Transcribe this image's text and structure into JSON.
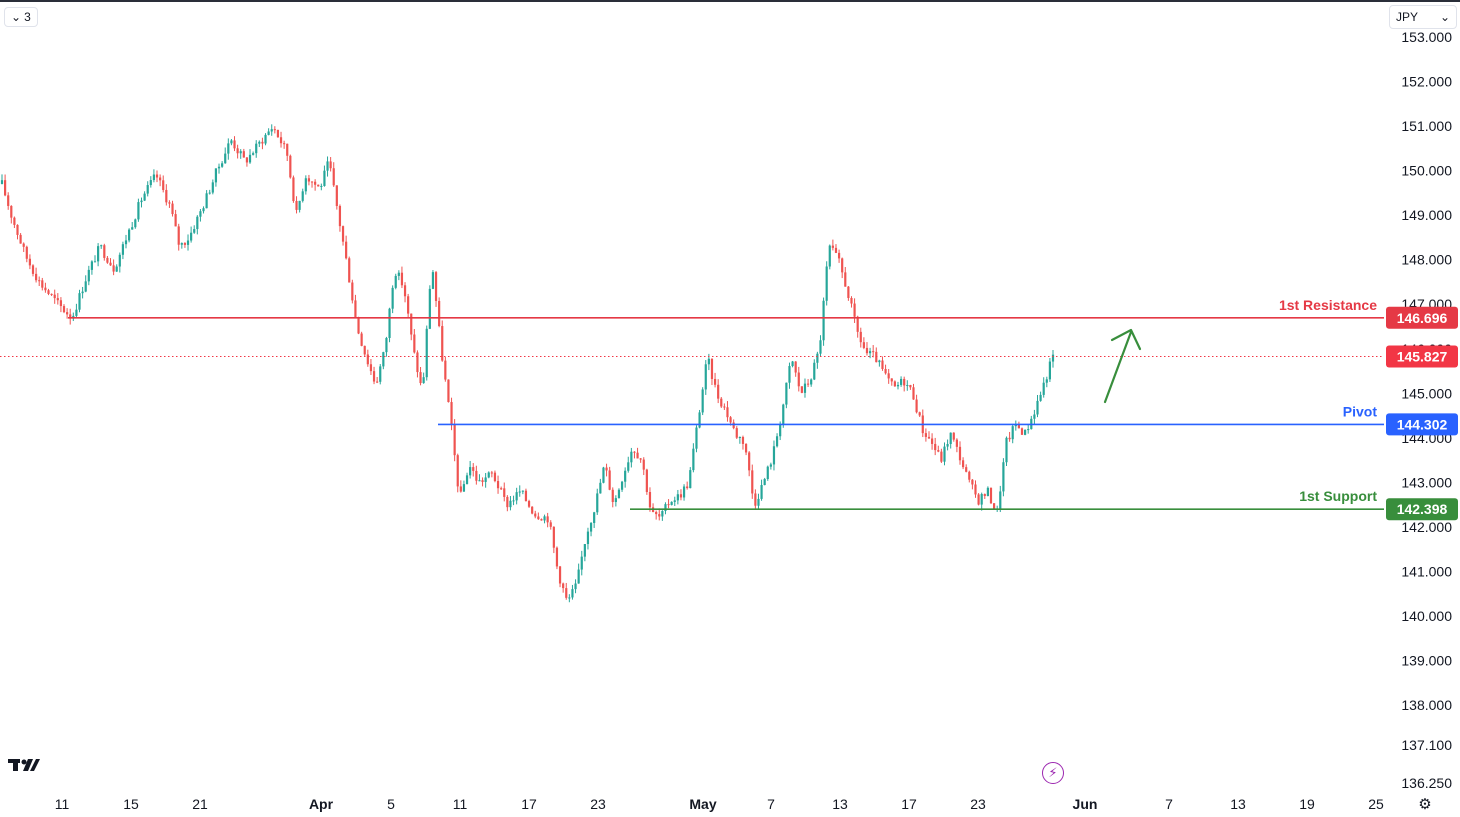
{
  "header": {
    "interval_label": "3",
    "currency_label": "JPY"
  },
  "colors": {
    "up": "#26a69a",
    "down": "#ef5350",
    "resistance": "#e53945",
    "pivot": "#2962ff",
    "support": "#388e3c",
    "current": "#f23645",
    "arrow": "#388e3c"
  },
  "chart_data": {
    "type": "candlestick",
    "title": "",
    "currency": "JPY",
    "ylim": [
      136.25,
      153.0
    ],
    "y_ticks": [
      "153.000",
      "152.000",
      "151.000",
      "150.000",
      "149.000",
      "148.000",
      "147.000",
      "146.000",
      "145.000",
      "144.000",
      "143.000",
      "142.000",
      "141.000",
      "140.000",
      "139.000",
      "138.000",
      "137.100",
      "136.250"
    ],
    "x_ticks": [
      {
        "label": "11",
        "bold": false
      },
      {
        "label": "15",
        "bold": false
      },
      {
        "label": "21",
        "bold": false
      },
      {
        "label": "Apr",
        "bold": true
      },
      {
        "label": "5",
        "bold": false
      },
      {
        "label": "11",
        "bold": false
      },
      {
        "label": "17",
        "bold": false
      },
      {
        "label": "23",
        "bold": false
      },
      {
        "label": "May",
        "bold": true
      },
      {
        "label": "7",
        "bold": false
      },
      {
        "label": "13",
        "bold": false
      },
      {
        "label": "17",
        "bold": false
      },
      {
        "label": "23",
        "bold": false
      },
      {
        "label": "Jun",
        "bold": true
      },
      {
        "label": "7",
        "bold": false
      },
      {
        "label": "13",
        "bold": false
      },
      {
        "label": "19",
        "bold": false
      },
      {
        "label": "25",
        "bold": false
      }
    ],
    "levels": [
      {
        "name": "1st Resistance",
        "value": 146.696,
        "label": "146.696"
      },
      {
        "name": "Pivot",
        "value": 144.302,
        "label": "144.302"
      },
      {
        "name": "1st Support",
        "value": 142.398,
        "label": "142.398"
      }
    ],
    "current_price": {
      "value": 145.827,
      "label": "145.827"
    },
    "price_path": [
      {
        "t": 0,
        "p": 149.7
      },
      {
        "t": 2,
        "p": 149.0
      },
      {
        "t": 5,
        "p": 148.1
      },
      {
        "t": 8,
        "p": 147.5
      },
      {
        "t": 12,
        "p": 147.0
      },
      {
        "t": 15,
        "p": 146.7
      },
      {
        "t": 18,
        "p": 147.6
      },
      {
        "t": 21,
        "p": 148.3
      },
      {
        "t": 24,
        "p": 147.8
      },
      {
        "t": 27,
        "p": 148.6
      },
      {
        "t": 30,
        "p": 149.4
      },
      {
        "t": 33,
        "p": 149.9
      },
      {
        "t": 36,
        "p": 149.2
      },
      {
        "t": 38,
        "p": 148.3
      },
      {
        "t": 40,
        "p": 148.5
      },
      {
        "t": 43,
        "p": 149.2
      },
      {
        "t": 46,
        "p": 150.0
      },
      {
        "t": 49,
        "p": 150.7
      },
      {
        "t": 52,
        "p": 150.2
      },
      {
        "t": 55,
        "p": 150.6
      },
      {
        "t": 58,
        "p": 151.0
      },
      {
        "t": 61,
        "p": 150.4
      },
      {
        "t": 63,
        "p": 149.0
      },
      {
        "t": 65,
        "p": 149.9
      },
      {
        "t": 68,
        "p": 149.6
      },
      {
        "t": 70,
        "p": 150.2
      },
      {
        "t": 72,
        "p": 149.0
      },
      {
        "t": 74,
        "p": 147.8
      },
      {
        "t": 76,
        "p": 146.5
      },
      {
        "t": 78,
        "p": 145.8
      },
      {
        "t": 80,
        "p": 145.2
      },
      {
        "t": 82,
        "p": 146.0
      },
      {
        "t": 84,
        "p": 147.8
      },
      {
        "t": 86,
        "p": 147.4
      },
      {
        "t": 88,
        "p": 146.0
      },
      {
        "t": 90,
        "p": 145.0
      },
      {
        "t": 92,
        "p": 148.0
      },
      {
        "t": 94,
        "p": 146.0
      },
      {
        "t": 96,
        "p": 144.4
      },
      {
        "t": 98,
        "p": 142.6
      },
      {
        "t": 100,
        "p": 143.4
      },
      {
        "t": 102,
        "p": 143.0
      },
      {
        "t": 105,
        "p": 143.2
      },
      {
        "t": 108,
        "p": 142.5
      },
      {
        "t": 111,
        "p": 142.8
      },
      {
        "t": 114,
        "p": 142.3
      },
      {
        "t": 117,
        "p": 142.2
      },
      {
        "t": 119,
        "p": 141.0
      },
      {
        "t": 121,
        "p": 140.3
      },
      {
        "t": 123,
        "p": 140.7
      },
      {
        "t": 125,
        "p": 141.8
      },
      {
        "t": 127,
        "p": 142.5
      },
      {
        "t": 129,
        "p": 143.4
      },
      {
        "t": 131,
        "p": 142.5
      },
      {
        "t": 133,
        "p": 143.2
      },
      {
        "t": 135,
        "p": 143.8
      },
      {
        "t": 137,
        "p": 143.5
      },
      {
        "t": 139,
        "p": 142.3
      },
      {
        "t": 141,
        "p": 142.2
      },
      {
        "t": 143,
        "p": 142.6
      },
      {
        "t": 145,
        "p": 142.7
      },
      {
        "t": 147,
        "p": 143.0
      },
      {
        "t": 149,
        "p": 144.4
      },
      {
        "t": 151,
        "p": 145.8
      },
      {
        "t": 153,
        "p": 145.0
      },
      {
        "t": 155,
        "p": 144.6
      },
      {
        "t": 157,
        "p": 144.1
      },
      {
        "t": 159,
        "p": 143.9
      },
      {
        "t": 161,
        "p": 142.5
      },
      {
        "t": 163,
        "p": 143.0
      },
      {
        "t": 165,
        "p": 143.6
      },
      {
        "t": 167,
        "p": 144.6
      },
      {
        "t": 169,
        "p": 145.8
      },
      {
        "t": 171,
        "p": 145.0
      },
      {
        "t": 173,
        "p": 145.3
      },
      {
        "t": 175,
        "p": 146.0
      },
      {
        "t": 177,
        "p": 148.3
      },
      {
        "t": 179,
        "p": 148.0
      },
      {
        "t": 181,
        "p": 147.3
      },
      {
        "t": 183,
        "p": 146.4
      },
      {
        "t": 185,
        "p": 145.9
      },
      {
        "t": 187,
        "p": 145.8
      },
      {
        "t": 189,
        "p": 145.4
      },
      {
        "t": 191,
        "p": 145.1
      },
      {
        "t": 193,
        "p": 145.3
      },
      {
        "t": 195,
        "p": 145.0
      },
      {
        "t": 197,
        "p": 144.2
      },
      {
        "t": 199,
        "p": 143.9
      },
      {
        "t": 201,
        "p": 143.5
      },
      {
        "t": 203,
        "p": 144.1
      },
      {
        "t": 205,
        "p": 143.6
      },
      {
        "t": 207,
        "p": 143.0
      },
      {
        "t": 209,
        "p": 142.6
      },
      {
        "t": 211,
        "p": 142.8
      },
      {
        "t": 213,
        "p": 142.3
      },
      {
        "t": 215,
        "p": 143.9
      },
      {
        "t": 217,
        "p": 144.3
      },
      {
        "t": 219,
        "p": 144.1
      },
      {
        "t": 221,
        "p": 144.6
      },
      {
        "t": 223,
        "p": 145.2
      },
      {
        "t": 225,
        "p": 145.83
      }
    ]
  }
}
